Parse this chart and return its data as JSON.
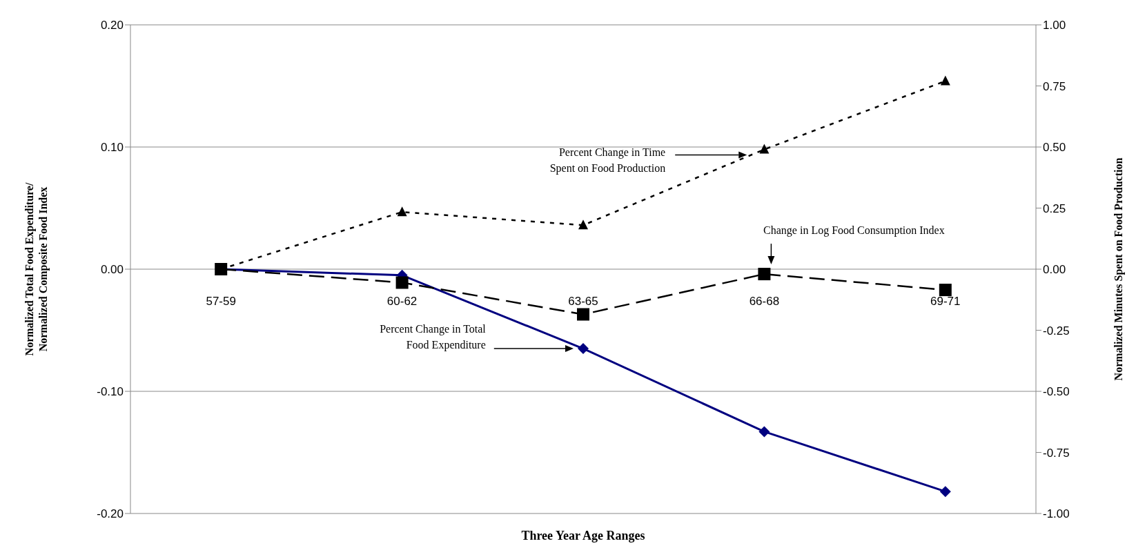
{
  "chart_data": {
    "type": "line",
    "xlabel": "Three Year Age Ranges",
    "ylabel": "Normalized Total Food Expenditure/ Normalized Composite Food Index",
    "y2label": "Normalized Minutes Spent on Food Production",
    "categories": [
      "57-59",
      "60-62",
      "63-65",
      "66-68",
      "69-71"
    ],
    "series": [
      {
        "name": "Percent Change in Total Food Expenditure",
        "color": "#000080",
        "values": [
          0,
          -0.005,
          -0.065,
          -0.133,
          -0.182
        ],
        "marker": "diamond",
        "line_style": "solid"
      },
      {
        "name": "Change in Log Food Consumption Index",
        "color": "#000000",
        "values": [
          0,
          -0.011,
          -0.037,
          -0.004,
          -0.017
        ],
        "marker": "square",
        "line_style": "dashed"
      },
      {
        "name": "Percent Change in Time Spent on Food Production",
        "color": "#000000",
        "values": [
          0,
          0.234,
          0.18,
          0.49,
          0.77
        ],
        "marker": "triangle",
        "line_style": "dotted",
        "axis": "y2"
      }
    ],
    "ylim": [
      -0.2,
      0.2
    ],
    "yticks": [
      {
        "value": -0.2,
        "label": "-0.20"
      },
      {
        "value": -0.1,
        "label": "-0.10"
      },
      {
        "value": 0,
        "label": "0.00"
      },
      {
        "value": 0.1,
        "label": "0.10"
      },
      {
        "value": 0.2,
        "label": "0.20"
      }
    ],
    "y2lim": [
      -1,
      1
    ],
    "y2ticks": [
      {
        "value": -1,
        "label": "-1.00"
      },
      {
        "value": -0.75,
        "label": "-0.75"
      },
      {
        "value": -0.5,
        "label": "-0.50"
      },
      {
        "value": -0.25,
        "label": "-0.25"
      },
      {
        "value": 0,
        "label": "0.00"
      },
      {
        "value": 0.25,
        "label": "0.25"
      },
      {
        "value": 0.5,
        "label": "0.50"
      },
      {
        "value": 0.75,
        "label": "0.75"
      },
      {
        "value": 1,
        "label": "1.00"
      }
    ],
    "grid": "y",
    "legend": false
  }
}
